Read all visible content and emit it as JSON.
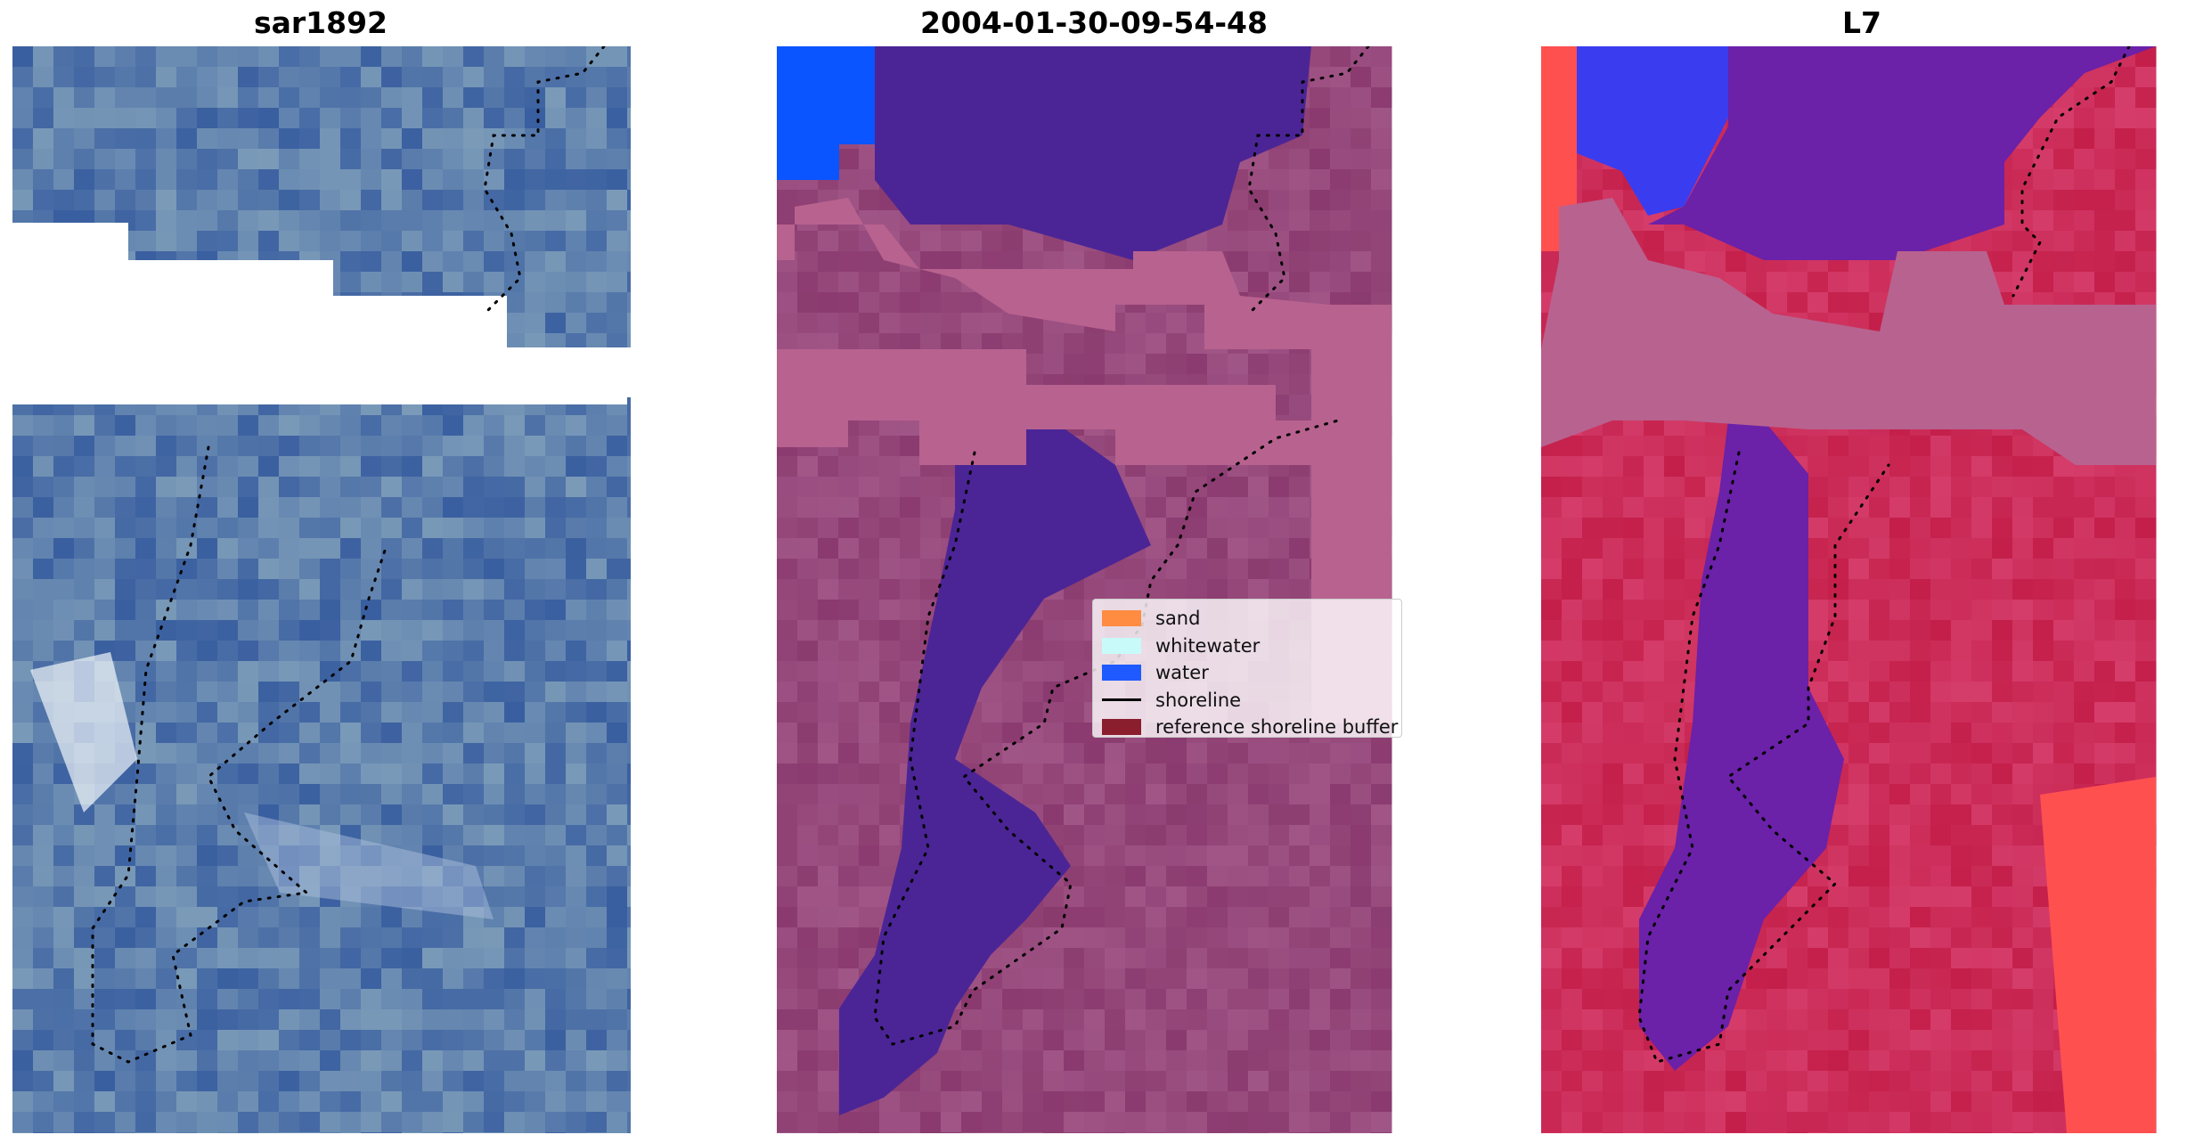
{
  "panels": [
    {
      "title": "sar1892",
      "style": "rgb"
    },
    {
      "title": "2004-01-30-09-54-48",
      "style": "classified"
    },
    {
      "title": "L7",
      "style": "index"
    }
  ],
  "legend": {
    "items": [
      {
        "label": "sand",
        "color": "#ff8c40",
        "kind": "patch"
      },
      {
        "label": "whitewater",
        "color": "#c8fafa",
        "kind": "patch"
      },
      {
        "label": "water",
        "color": "#1e5aff",
        "kind": "patch"
      },
      {
        "label": "shoreline",
        "color": "#000000",
        "kind": "line"
      },
      {
        "label": "reference shoreline buffer",
        "color": "#8b1e2d",
        "kind": "patch"
      }
    ]
  },
  "colors": {
    "rgb_base": "#3f64a0",
    "class_land": "#8a3a6e",
    "class_water": "#4b2596",
    "class_water_blue": "#0a55ff",
    "buffer_pink": "#b8628f",
    "index_land": "#c41f4a",
    "index_water": "#6b21a8",
    "index_blue": "#3a3cf0",
    "index_red_bright": "#ff5050"
  }
}
